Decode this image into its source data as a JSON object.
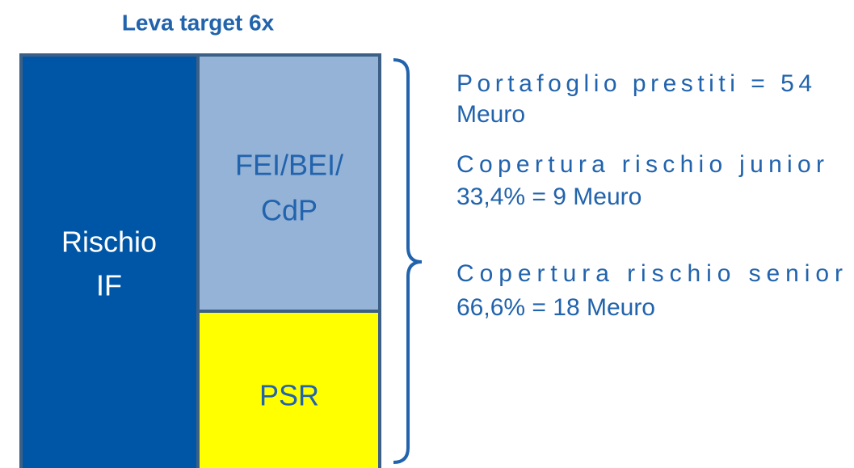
{
  "title": "Leva target 6x",
  "blocks": {
    "left": {
      "lines": [
        "Rischio",
        "IF"
      ]
    },
    "top_right": {
      "lines": [
        "FEI/BEI/",
        "CdP"
      ]
    },
    "bottom_right": {
      "lines": [
        "PSR"
      ]
    }
  },
  "notes": [
    {
      "lines": [
        "Portafoglio prestiti = 54",
        "Meuro"
      ]
    },
    {
      "lines": [
        "Copertura rischio junior",
        "33,4% = 9 Meuro"
      ]
    },
    {
      "lines": [
        "Copertura rischio senior",
        "66,6% = 18 Meuro"
      ]
    }
  ]
}
